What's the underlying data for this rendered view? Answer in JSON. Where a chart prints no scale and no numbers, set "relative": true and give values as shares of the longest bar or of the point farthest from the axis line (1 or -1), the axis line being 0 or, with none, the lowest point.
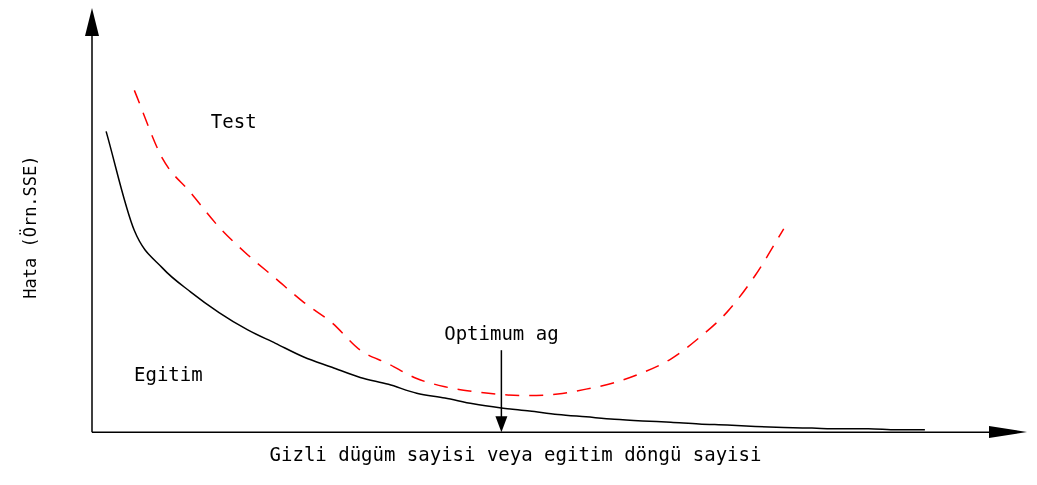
{
  "chart_data": {
    "type": "line",
    "relative": true,
    "xlabel": "Gizli dügüm sayisi veya egitim döngü sayisi",
    "ylabel": "Hata (Örn.SSE)",
    "categories": [
      null,
      null,
      null,
      null,
      null,
      null,
      null,
      null,
      null,
      null,
      null,
      null,
      null,
      null,
      null,
      null,
      null,
      null,
      null,
      null,
      null,
      null,
      null,
      null,
      null,
      null,
      null,
      null,
      null,
      null
    ],
    "series": [
      {
        "name": "Egitim",
        "color": "#000000",
        "line_style": "solid",
        "values": [
          0.88,
          0.59,
          0.48,
          0.41,
          0.35,
          0.3,
          0.26,
          0.22,
          0.19,
          0.16,
          0.14,
          0.114,
          0.1,
          0.083,
          0.071,
          0.062,
          0.052,
          0.045,
          0.038,
          0.033,
          0.029,
          0.024,
          0.021,
          0.017,
          0.014,
          0.012,
          0.01,
          0.01,
          0.007,
          0.007
        ]
      },
      {
        "name": "Test",
        "color": "#ff0000",
        "line_style": "dashed",
        "values": [
          null,
          1,
          0.8,
          0.7,
          0.6,
          0.52,
          0.45,
          0.38,
          0.32,
          0.24,
          0.2,
          0.157,
          0.133,
          0.119,
          0.11,
          0.107,
          0.112,
          0.126,
          0.145,
          0.174,
          0.214,
          0.276,
          0.352,
          0.46,
          0.595,
          null,
          null,
          null,
          null,
          null
        ]
      }
    ],
    "annotations": [
      "Optimum ag"
    ],
    "legend": false,
    "grid": false,
    "marker": "none",
    "tick_labels": false
  }
}
